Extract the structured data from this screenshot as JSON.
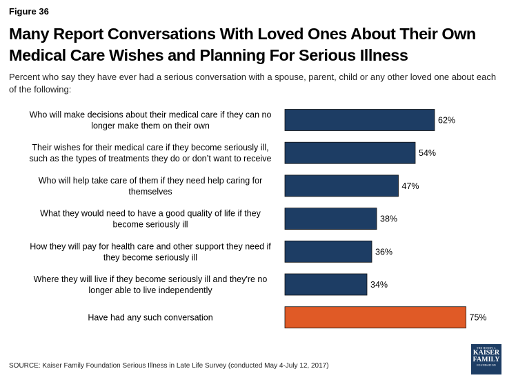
{
  "figure_label": "Figure 36",
  "title": "Many Report Conversations With Loved Ones About Their Own Medical Care Wishes and Planning For Serious Illness",
  "subtitle": "Percent who say they have ever had a serious conversation with a spouse, parent, child or any other loved one about each of the following:",
  "source": "SOURCE: Kaiser Family Foundation Serious Illness in Late Life Survey (conducted May 4-July 12, 2017)",
  "logo": {
    "line1": "THE HENRY J.",
    "line2": "KAISER",
    "line3": "FAMILY",
    "line4": "FOUNDATION"
  },
  "colors": {
    "bar_primary": "#1d3d64",
    "bar_highlight": "#e05a26"
  },
  "chart_data": {
    "type": "bar",
    "orientation": "horizontal",
    "categories": [
      [
        "Who will make decisions about their medical care if they can no",
        "longer make them on their own"
      ],
      [
        "Their wishes for their medical care if they become seriously ill,",
        "such as the types of treatments they do or don’t want to receive"
      ],
      [
        "Who will help take care of them if they need help caring for",
        "themselves"
      ],
      [
        "What they would need to have a good quality of life if they",
        "become seriously ill"
      ],
      [
        "How they will pay for health care and other support they need if",
        "they become seriously ill"
      ],
      [
        "Where they will live if they become seriously ill and they're no",
        "longer able to live independently"
      ],
      [
        "Have had any such conversation"
      ]
    ],
    "values": [
      62,
      54,
      47,
      38,
      36,
      34,
      75
    ],
    "value_labels": [
      "62%",
      "54%",
      "47%",
      "38%",
      "36%",
      "34%",
      "75%"
    ],
    "highlight_index": 6,
    "xlim": [
      0,
      100
    ],
    "grid": false
  }
}
